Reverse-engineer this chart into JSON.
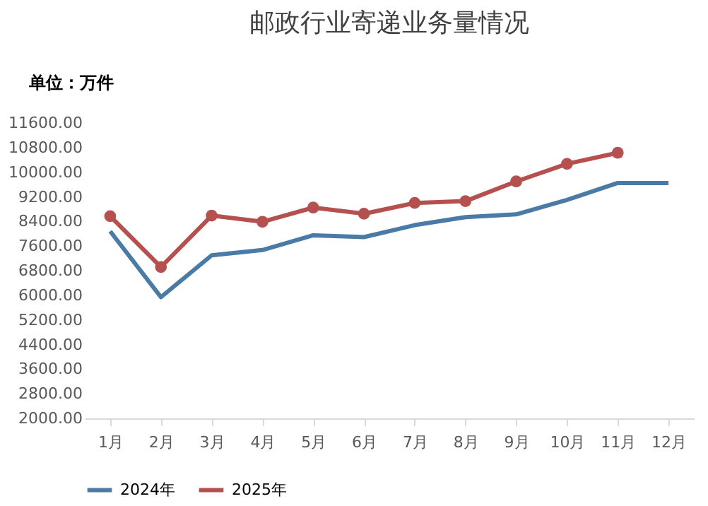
{
  "chart_data": {
    "type": "line",
    "title": "邮政行业寄递业务量情况",
    "ylabel": "单位：万件",
    "categories": [
      "1月",
      "2月",
      "3月",
      "4月",
      "5月",
      "6月",
      "7月",
      "8月",
      "9月",
      "10月",
      "11月",
      "12月"
    ],
    "series": [
      {
        "name": "2024年",
        "color": "#4a7ba6",
        "marker": "none",
        "values": [
          8080,
          5940,
          7300,
          7470,
          7950,
          7890,
          8280,
          8540,
          8630,
          9100,
          9650,
          9650
        ]
      },
      {
        "name": "2025年",
        "color": "#b5504f",
        "marker": "circle",
        "values": [
          8570,
          6920,
          8590,
          8390,
          8850,
          8650,
          9000,
          9060,
          9700,
          10270,
          10630,
          null
        ]
      }
    ],
    "ylim": [
      2000,
      11600
    ],
    "yticks": [
      {
        "value": 2000,
        "label": "2000.00"
      },
      {
        "value": 2800,
        "label": "2800.00"
      },
      {
        "value": 3600,
        "label": "3600.00"
      },
      {
        "value": 4400,
        "label": "4400.00"
      },
      {
        "value": 5200,
        "label": "5200.00"
      },
      {
        "value": 6000,
        "label": "6000.00"
      },
      {
        "value": 6800,
        "label": "6800.00"
      },
      {
        "value": 7600,
        "label": "7600.00"
      },
      {
        "value": 8400,
        "label": "8400.00"
      },
      {
        "value": 9200,
        "label": "9200.00"
      },
      {
        "value": 10000,
        "label": "10000.00"
      },
      {
        "value": 10800,
        "label": "10800.00"
      },
      {
        "value": 11600,
        "label": "11600.00"
      }
    ],
    "grid": false,
    "legend": "bottom",
    "line_style": "solid"
  }
}
